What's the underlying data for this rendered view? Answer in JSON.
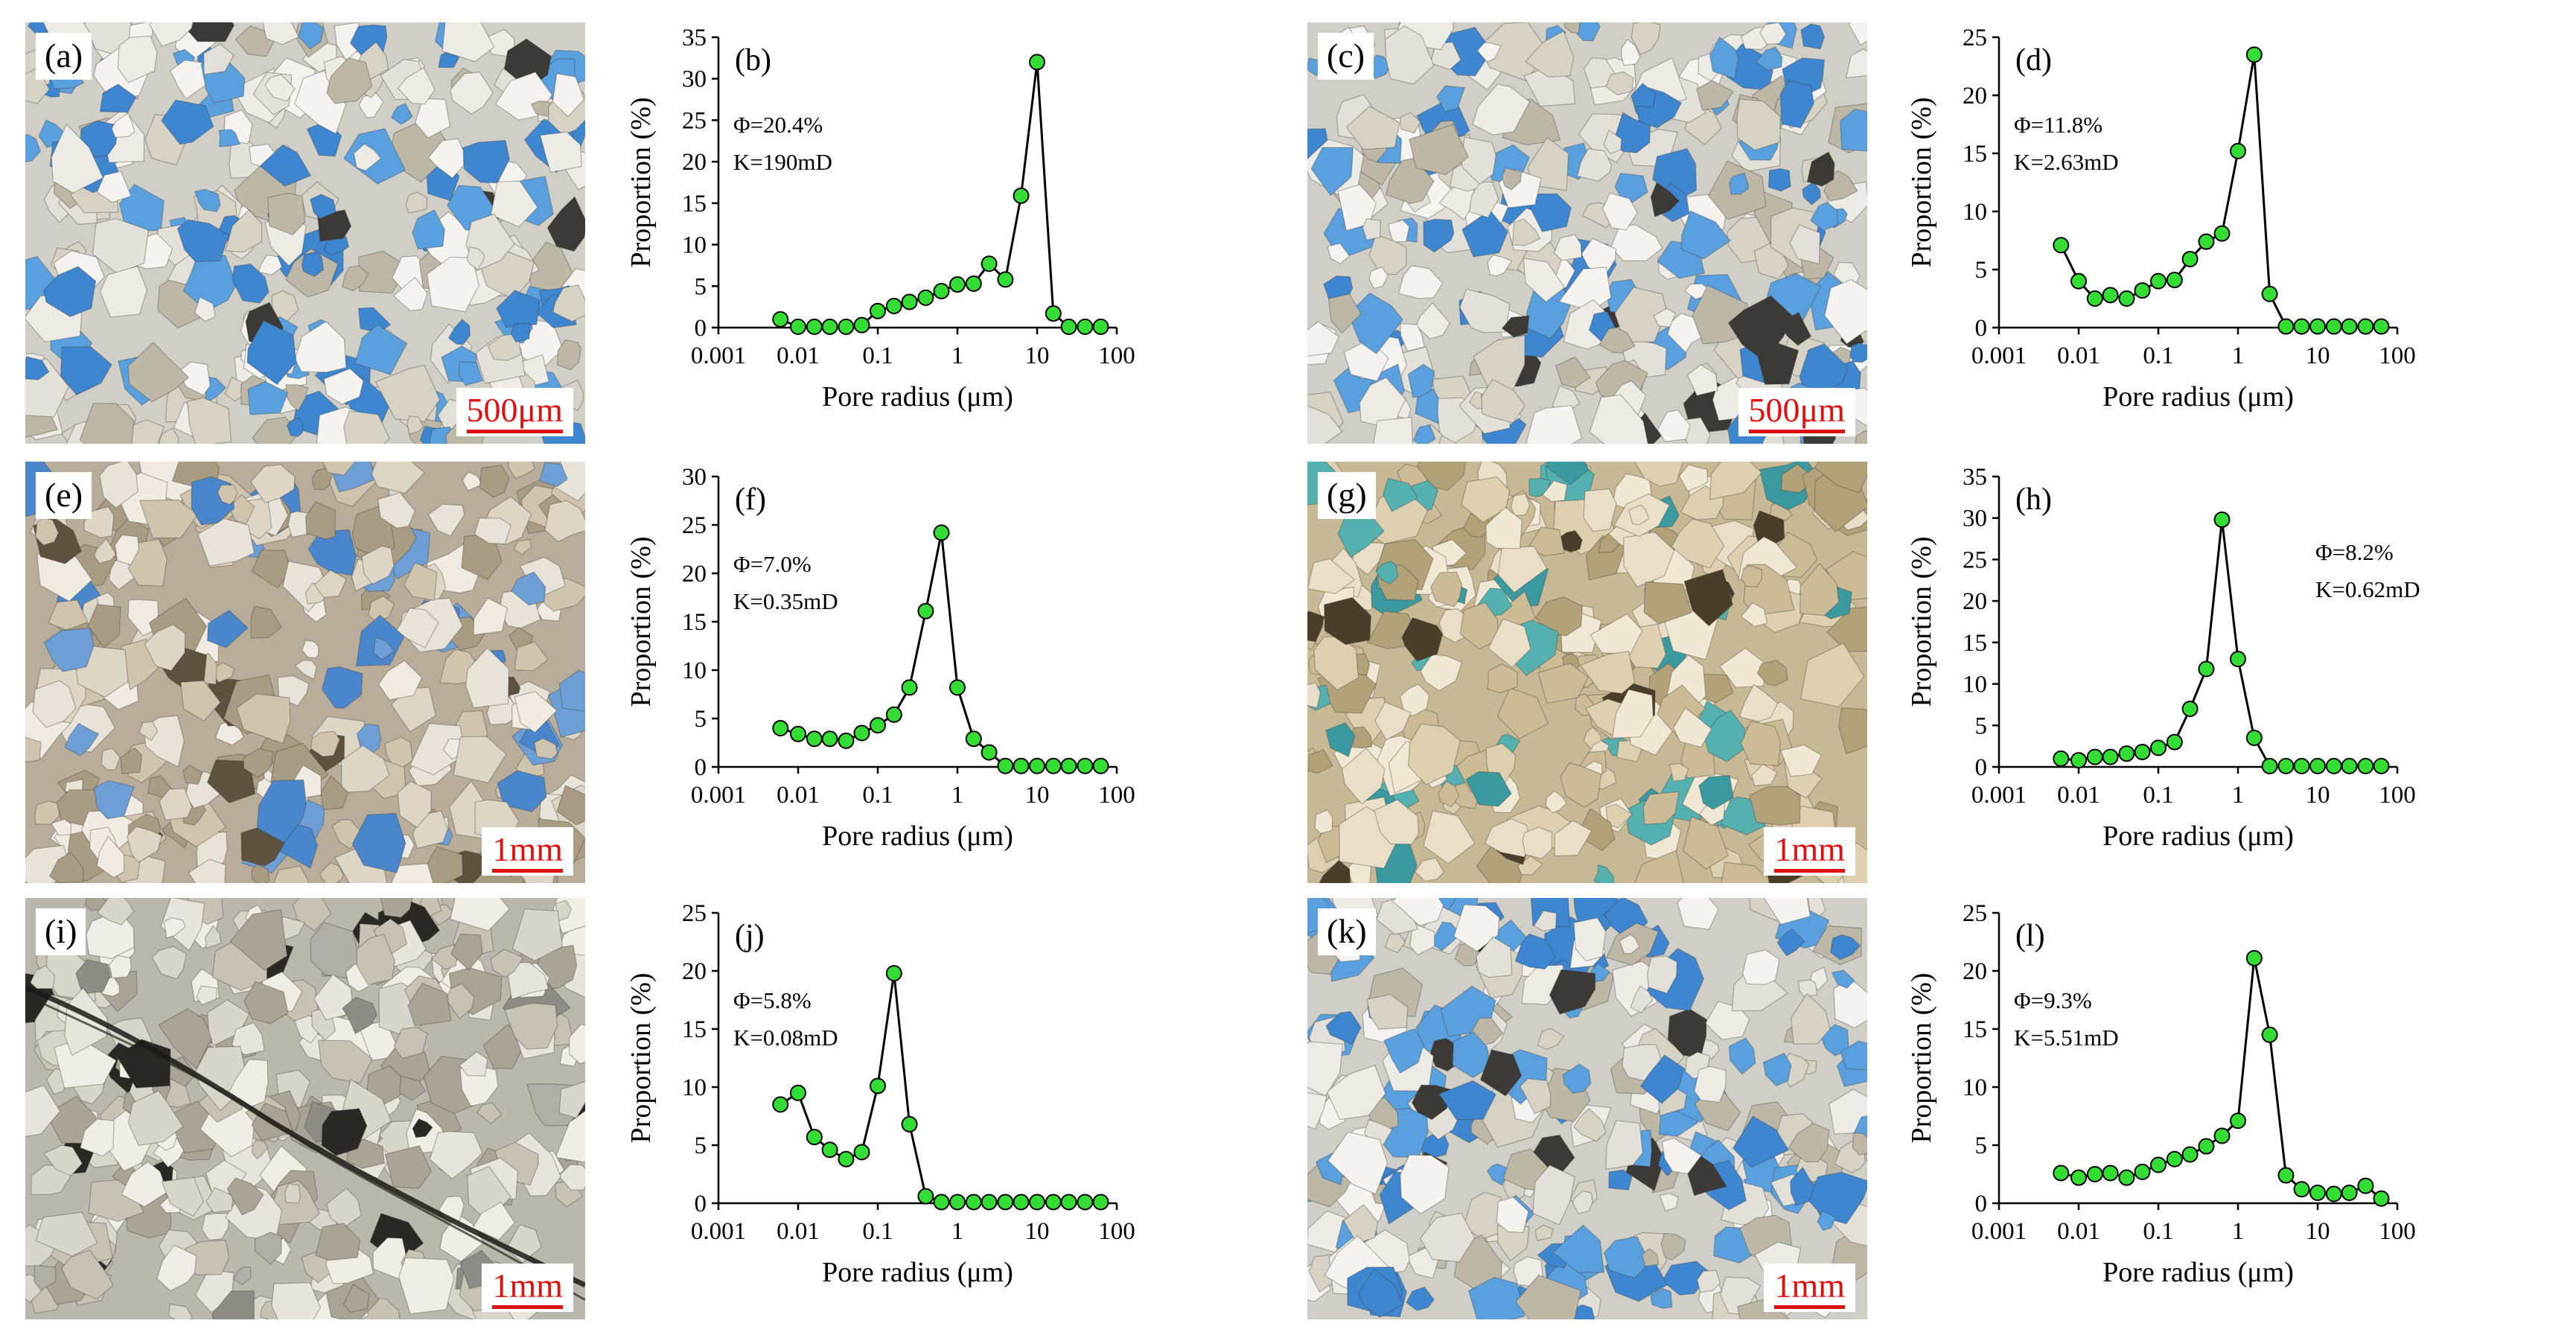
{
  "photos": [
    {
      "id": "a",
      "label": "(a)",
      "scale": "500μm",
      "tone": "blue"
    },
    {
      "id": "c",
      "label": "(c)",
      "scale": "500μm",
      "tone": "blue"
    },
    {
      "id": "e",
      "label": "(e)",
      "scale": "1mm",
      "tone": "tan"
    },
    {
      "id": "g",
      "label": "(g)",
      "scale": "1mm",
      "tone": "beige"
    },
    {
      "id": "i",
      "label": "(i)",
      "scale": "1mm",
      "tone": "grey"
    },
    {
      "id": "k",
      "label": "(k)",
      "scale": "1mm",
      "tone": "blue"
    }
  ],
  "colors": {
    "marker": "#33dd33",
    "line": "#000000",
    "scale": "#e01010"
  },
  "chart_data": [
    {
      "id": "b",
      "type": "line",
      "label": "(b)",
      "annot": [
        "Φ=20.4%",
        "K=190mD"
      ],
      "annot_pos": "upper-left",
      "xlabel": "Pore radius (μm)",
      "ylabel": "Proportion (%)",
      "xscale": "log",
      "xlim": [
        0.001,
        100
      ],
      "xticks": [
        "0.001",
        "0.01",
        "0.1",
        "1",
        "10",
        "100"
      ],
      "ylim": [
        0,
        35
      ],
      "yticks": [
        0,
        5,
        10,
        15,
        20,
        25,
        30,
        35
      ],
      "x": [
        0.006,
        0.01,
        0.016,
        0.025,
        0.04,
        0.063,
        0.1,
        0.16,
        0.25,
        0.4,
        0.63,
        1,
        1.6,
        2.5,
        4,
        6.3,
        10,
        16,
        25,
        40,
        63
      ],
      "y": [
        1.0,
        0.1,
        0.1,
        0.1,
        0.1,
        0.3,
        2.0,
        2.6,
        3.1,
        3.6,
        4.4,
        5.2,
        5.3,
        7.7,
        5.8,
        15.9,
        32.0,
        1.7,
        0.1,
        0.1,
        0.1
      ]
    },
    {
      "id": "d",
      "type": "line",
      "label": "(d)",
      "annot": [
        "Φ=11.8%",
        "K=2.63mD"
      ],
      "annot_pos": "upper-left",
      "xlabel": "Pore radius (μm)",
      "ylabel": "Proportion (%)",
      "xscale": "log",
      "xlim": [
        0.001,
        100
      ],
      "xticks": [
        "0.001",
        "0.01",
        "0.1",
        "1",
        "10",
        "100"
      ],
      "ylim": [
        0,
        25
      ],
      "yticks": [
        0,
        5,
        10,
        15,
        20,
        25
      ],
      "x": [
        0.006,
        0.01,
        0.016,
        0.025,
        0.04,
        0.063,
        0.1,
        0.16,
        0.25,
        0.4,
        0.63,
        1,
        1.6,
        2.5,
        4,
        6.3,
        10,
        16,
        25,
        40,
        63
      ],
      "y": [
        7.1,
        4.0,
        2.5,
        2.8,
        2.5,
        3.2,
        4.0,
        4.1,
        5.9,
        7.4,
        8.1,
        15.2,
        23.5,
        2.9,
        0.1,
        0.1,
        0.1,
        0.1,
        0.1,
        0.1,
        0.1
      ]
    },
    {
      "id": "f",
      "type": "line",
      "label": "(f)",
      "annot": [
        "Φ=7.0%",
        "K=0.35mD"
      ],
      "annot_pos": "upper-left",
      "xlabel": "Pore radius (μm)",
      "ylabel": "Proportion (%)",
      "xscale": "log",
      "xlim": [
        0.001,
        100
      ],
      "xticks": [
        "0.001",
        "0.01",
        "0.1",
        "1",
        "10",
        "100"
      ],
      "ylim": [
        0,
        30
      ],
      "yticks": [
        0,
        5,
        10,
        15,
        20,
        25,
        30
      ],
      "x": [
        0.006,
        0.01,
        0.016,
        0.025,
        0.04,
        0.063,
        0.1,
        0.16,
        0.25,
        0.4,
        0.63,
        1,
        1.6,
        2.5,
        4,
        6.3,
        10,
        16,
        25,
        40,
        63
      ],
      "y": [
        4.0,
        3.4,
        2.9,
        2.9,
        2.7,
        3.5,
        4.3,
        5.4,
        8.2,
        16.1,
        24.2,
        8.2,
        2.9,
        1.5,
        0.1,
        0.1,
        0.1,
        0.1,
        0.1,
        0.1,
        0.1
      ]
    },
    {
      "id": "h",
      "type": "line",
      "label": "(h)",
      "annot": [
        "Φ=8.2%",
        "K=0.62mD"
      ],
      "annot_pos": "right",
      "xlabel": "Pore radius (μm)",
      "ylabel": "Proportion (%)",
      "xscale": "log",
      "xlim": [
        0.001,
        100
      ],
      "xticks": [
        "0.001",
        "0.01",
        "0.1",
        "1",
        "10",
        "100"
      ],
      "ylim": [
        0,
        35
      ],
      "yticks": [
        0,
        5,
        10,
        15,
        20,
        25,
        30,
        35
      ],
      "x": [
        0.006,
        0.01,
        0.016,
        0.025,
        0.04,
        0.063,
        0.1,
        0.16,
        0.25,
        0.4,
        0.63,
        1,
        1.6,
        2.5,
        4,
        6.3,
        10,
        16,
        25,
        40,
        63
      ],
      "y": [
        1.0,
        0.8,
        1.2,
        1.2,
        1.6,
        1.8,
        2.3,
        3.0,
        7.0,
        11.8,
        29.8,
        13.0,
        3.5,
        0.1,
        0.1,
        0.1,
        0.1,
        0.1,
        0.1,
        0.1,
        0.1
      ]
    },
    {
      "id": "j",
      "type": "line",
      "label": "(j)",
      "annot": [
        "Φ=5.8%",
        "K=0.08mD"
      ],
      "annot_pos": "upper-left",
      "xlabel": "Pore radius (μm)",
      "ylabel": "Proportion (%)",
      "xscale": "log",
      "xlim": [
        0.001,
        100
      ],
      "xticks": [
        "0.001",
        "0.01",
        "0.1",
        "1",
        "10",
        "100"
      ],
      "ylim": [
        0,
        25
      ],
      "yticks": [
        0,
        5,
        10,
        15,
        20,
        25
      ],
      "x": [
        0.006,
        0.01,
        0.016,
        0.025,
        0.04,
        0.063,
        0.1,
        0.16,
        0.25,
        0.4,
        0.63,
        1,
        1.6,
        2.5,
        4,
        6.3,
        10,
        16,
        25,
        40,
        63
      ],
      "y": [
        8.5,
        9.5,
        5.7,
        4.6,
        3.8,
        4.4,
        10.1,
        19.8,
        6.8,
        0.6,
        0.1,
        0.1,
        0.1,
        0.1,
        0.1,
        0.1,
        0.1,
        0.1,
        0.1,
        0.1,
        0.1
      ]
    },
    {
      "id": "l",
      "type": "line",
      "label": "(l)",
      "annot": [
        "Φ=9.3%",
        "K=5.51mD"
      ],
      "annot_pos": "upper-left",
      "xlabel": "Pore radius (μm)",
      "ylabel": "Proportion (%)",
      "xscale": "log",
      "xlim": [
        0.001,
        100
      ],
      "xticks": [
        "0.001",
        "0.01",
        "0.1",
        "1",
        "10",
        "100"
      ],
      "ylim": [
        0,
        25
      ],
      "yticks": [
        0,
        5,
        10,
        15,
        20,
        25
      ],
      "x": [
        0.006,
        0.01,
        0.016,
        0.025,
        0.04,
        0.063,
        0.1,
        0.16,
        0.25,
        0.4,
        0.63,
        1,
        1.6,
        2.5,
        4,
        6.3,
        10,
        16,
        25,
        40,
        63
      ],
      "y": [
        2.6,
        2.2,
        2.5,
        2.6,
        2.2,
        2.7,
        3.3,
        3.8,
        4.2,
        4.9,
        5.8,
        7.1,
        21.1,
        14.5,
        2.4,
        1.2,
        0.9,
        0.8,
        0.9,
        1.5,
        0.4
      ]
    }
  ]
}
